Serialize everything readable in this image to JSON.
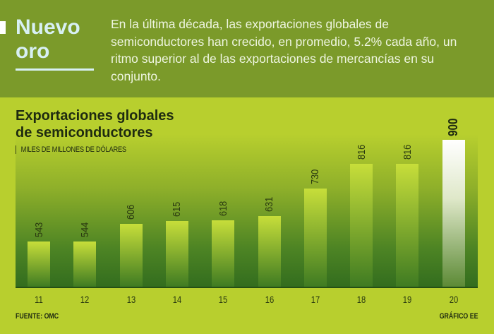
{
  "header": {
    "title_line1": "Nuevo",
    "title_line2": "oro",
    "intro": "En la última década, las exportaciones globales de semiconductores han crecido, en promedio, 5.2% cada año, un ritmo superior al de las exportaciones de mercancías en su conjunto."
  },
  "chart_data": {
    "type": "bar",
    "title": "Exportaciones globales de semiconductores",
    "ylabel": "MILES DE MILLONES DE DÓLARES",
    "categories": [
      "11",
      "12",
      "13",
      "14",
      "15",
      "16",
      "17",
      "18",
      "19",
      "20"
    ],
    "values": [
      543,
      544,
      606,
      615,
      618,
      631,
      730,
      816,
      816,
      900
    ],
    "highlight": "20",
    "grid": false,
    "colors": {
      "header": "#7b9a2a",
      "background": "#b8cf2e",
      "bar": "#c7de3a",
      "highlight": "#ffffff"
    }
  },
  "footer": {
    "source": "FUENTE: OMC",
    "credit": "GRÁFICO EE"
  }
}
